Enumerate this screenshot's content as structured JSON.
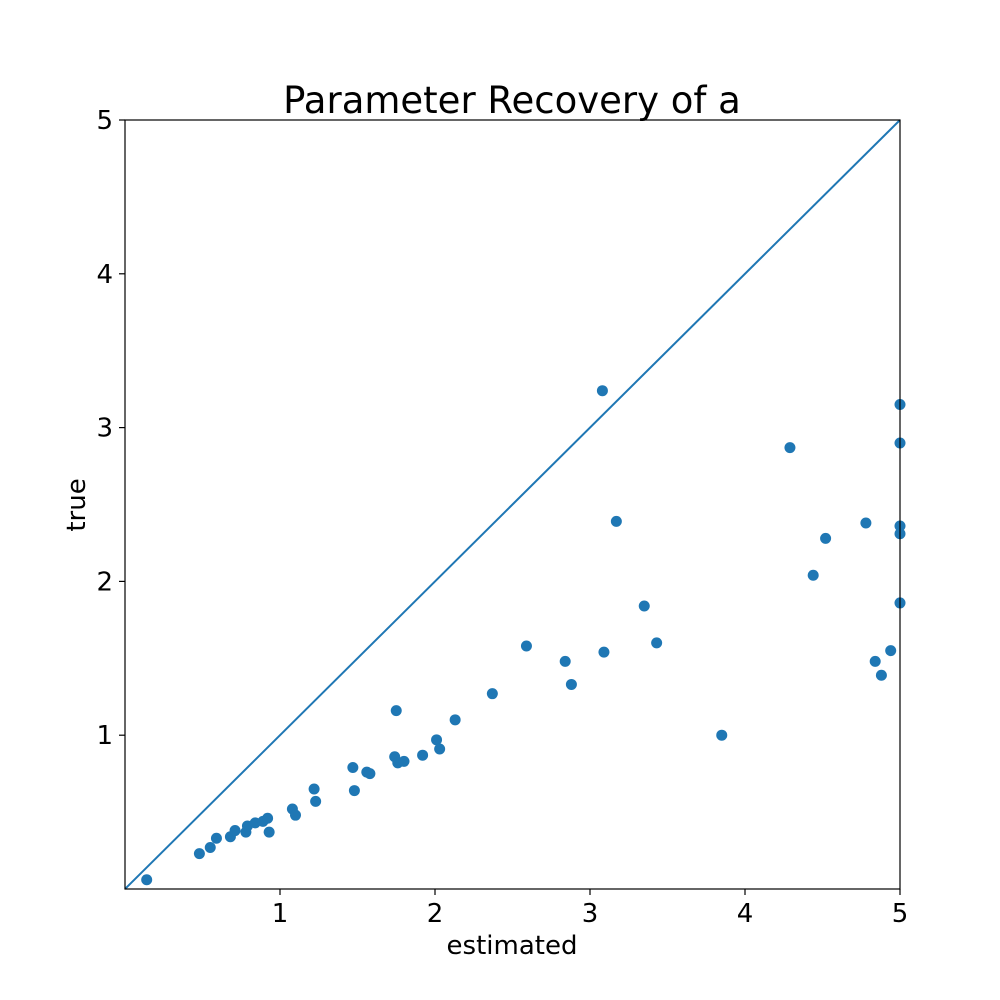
{
  "chart_data": {
    "type": "scatter",
    "title": "Parameter Recovery of a",
    "xlabel": "estimated",
    "ylabel": "true",
    "xlim": [
      0,
      5
    ],
    "ylim": [
      0,
      5
    ],
    "xticks": [
      "1",
      "2",
      "3",
      "4",
      "5"
    ],
    "yticks": [
      "1",
      "2",
      "3",
      "4",
      "5"
    ],
    "grid": false,
    "legend": "none",
    "colors": {
      "points": "#1f77b4",
      "identity_line": "#1f77b4",
      "axes": "#000000"
    },
    "reference_line": {
      "from": [
        0,
        0
      ],
      "to": [
        5,
        5
      ]
    },
    "series": [
      {
        "x": [
          0.14,
          0.48,
          0.55,
          0.59,
          0.68,
          0.71,
          0.78,
          0.79,
          0.84,
          0.89,
          0.92,
          0.93,
          1.08,
          1.1,
          1.22,
          1.23,
          1.47,
          1.48,
          1.56,
          1.58,
          1.74,
          1.75,
          1.76,
          1.8,
          1.92,
          2.01,
          2.03,
          2.13,
          2.37,
          2.59,
          2.84,
          2.88,
          3.08,
          3.09,
          3.17,
          3.35,
          3.43,
          3.85,
          4.29,
          4.44,
          4.52,
          4.78,
          4.84,
          4.88,
          4.94,
          5.0,
          5.0,
          5.0,
          5.0,
          5.0
        ],
        "y": [
          0.06,
          0.23,
          0.27,
          0.33,
          0.34,
          0.38,
          0.37,
          0.41,
          0.43,
          0.44,
          0.46,
          0.37,
          0.52,
          0.48,
          0.65,
          0.57,
          0.79,
          0.64,
          0.76,
          0.75,
          0.86,
          1.16,
          0.82,
          0.83,
          0.87,
          0.97,
          0.91,
          1.1,
          1.27,
          1.58,
          1.48,
          1.33,
          3.24,
          1.54,
          2.39,
          1.84,
          1.6,
          1.0,
          2.87,
          2.04,
          2.28,
          2.38,
          1.48,
          1.39,
          1.55,
          3.15,
          2.9,
          2.36,
          2.31,
          1.86
        ]
      }
    ]
  }
}
